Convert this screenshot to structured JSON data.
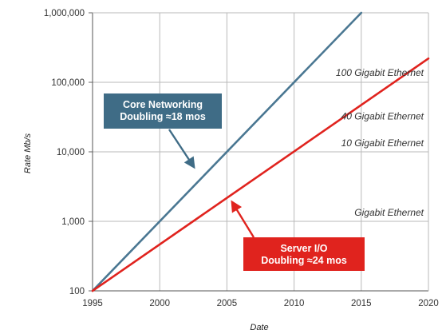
{
  "chart_data": {
    "type": "line",
    "xlabel": "Date",
    "ylabel": "Rate Mb/s",
    "xlim": [
      1995,
      2020
    ],
    "ylim": [
      100,
      1000000
    ],
    "yscale": "log",
    "grid": true,
    "x_ticks": [
      "1995",
      "2000",
      "2005",
      "2010",
      "2015",
      "2020"
    ],
    "y_ticks": [
      "100",
      "1,000",
      "10,000",
      "100,000",
      "1,000,000"
    ],
    "series": [
      {
        "x": [
          1995,
          2015
        ],
        "y": [
          100,
          1000000
        ],
        "color": "#4a7792"
      },
      {
        "x": [
          1995,
          2020
        ],
        "y": [
          100,
          220000
        ],
        "color": "#e0231e"
      }
    ],
    "annotations": [
      {
        "text": "100 Gigabit Ethernet",
        "y": 100000
      },
      {
        "text": "40 Gigabit Ethernet",
        "y": 40000
      },
      {
        "text": "10 Gigabit Ethernet",
        "y": 10000
      },
      {
        "text": "Gigabit Ethernet",
        "y": 1000
      }
    ],
    "callouts": [
      {
        "lines": [
          "Core Networking",
          "Doubling ≈18 mos"
        ],
        "color": "#3f6c86"
      },
      {
        "lines": [
          "Server I/O",
          "Doubling ≈24 mos"
        ],
        "color": "#e0231e"
      }
    ]
  }
}
